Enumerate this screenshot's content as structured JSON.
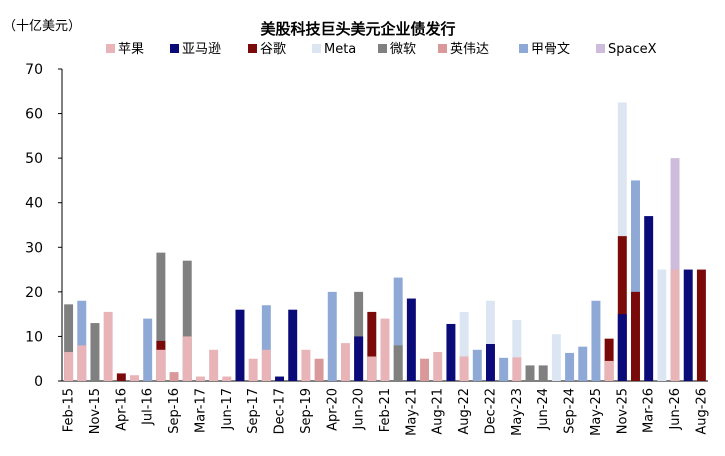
{
  "chart_data": {
    "type": "bar",
    "stacked": true,
    "title": "美股科技巨头美元企业债发行",
    "unit_label": "（十亿美元）",
    "ylim": [
      0,
      70
    ],
    "yticks": [
      0,
      10,
      20,
      30,
      40,
      50,
      60,
      70
    ],
    "grid": false,
    "legend_position": "top",
    "colors": {
      "苹果": "#E8B4B8",
      "亚马逊": "#0A0A78",
      "谷歌": "#7A0A0A",
      "Meta": "#DCE6F2",
      "微软": "#808080",
      "英伟达": "#D9999B",
      "甲骨文": "#8EA9D6",
      "SpaceX": "#CDBCDC"
    },
    "legend": [
      "苹果",
      "亚马逊",
      "谷歌",
      "Meta",
      "微软",
      "英伟达",
      "甲骨文",
      "SpaceX"
    ],
    "x_tick_labels": [
      "Feb-15",
      "Nov-15",
      "Apr-16",
      "Jul-16",
      "Sep-16",
      "Mar-17",
      "Jun-17",
      "Sep-17",
      "Dec-17",
      "Sep-19",
      "Apr-20",
      "Jun-20",
      "Feb-21",
      "May-21",
      "Aug-21",
      "Aug-22",
      "Dec-22",
      "May-23",
      "Jun-24",
      "Sep-24",
      "May-25",
      "Nov-25",
      "Mar-26",
      "Jun-26",
      "Aug-26"
    ],
    "categories": [
      "Feb-15",
      "",
      "Nov-15",
      "",
      "Apr-16",
      "",
      "Jul-16",
      "",
      "Sep-16",
      "",
      "Mar-17",
      "",
      "Jun-17",
      "",
      "Sep-17",
      "",
      "Dec-17",
      "",
      "Sep-19",
      "",
      "Apr-20",
      "",
      "Jun-20",
      "",
      "Feb-21",
      "",
      "May-21",
      "",
      "Aug-21",
      "",
      "Aug-22",
      "",
      "Dec-22",
      "",
      "May-23",
      "",
      "Jun-24",
      "",
      "Sep-24",
      "",
      "May-25",
      "",
      "Nov-25",
      "",
      "Mar-26",
      "",
      "Jun-26",
      "",
      "Aug-26"
    ],
    "bars": [
      [
        [
          "微软",
          17.2
        ],
        [
          "苹果",
          6.5
        ]
      ],
      [
        [
          "甲骨文",
          18
        ],
        [
          "苹果",
          8
        ]
      ],
      [
        [
          "微软",
          13
        ]
      ],
      [
        [
          "苹果",
          15.5
        ]
      ],
      [
        [
          "谷歌",
          1.7
        ]
      ],
      [
        [
          "苹果",
          1.3
        ]
      ],
      [
        [
          "甲骨文",
          14
        ]
      ],
      [
        [
          "微软",
          28.8
        ],
        [
          "谷歌",
          9
        ],
        [
          "苹果",
          7
        ]
      ],
      [
        [
          "英伟达",
          2
        ]
      ],
      [
        [
          "微软",
          27
        ],
        [
          "苹果",
          10
        ]
      ],
      [
        [
          "苹果",
          1
        ]
      ],
      [
        [
          "苹果",
          7
        ]
      ],
      [
        [
          "苹果",
          1
        ]
      ],
      [
        [
          "亚马逊",
          16
        ]
      ],
      [
        [
          "苹果",
          5
        ]
      ],
      [
        [
          "甲骨文",
          17
        ],
        [
          "苹果",
          7
        ]
      ],
      [
        [
          "亚马逊",
          1
        ]
      ],
      [
        [
          "亚马逊",
          16
        ]
      ],
      [
        [
          "苹果",
          7
        ]
      ],
      [
        [
          "英伟达",
          5
        ]
      ],
      [
        [
          "甲骨文",
          20
        ]
      ],
      [
        [
          "苹果",
          8.5
        ]
      ],
      [
        [
          "微软",
          20
        ],
        [
          "亚马逊",
          10
        ]
      ],
      [
        [
          "谷歌",
          15.5
        ],
        [
          "苹果",
          5.5
        ]
      ],
      [
        [
          "苹果",
          14
        ]
      ],
      [
        [
          "甲骨文",
          23.2
        ],
        [
          "微软",
          8
        ]
      ],
      [
        [
          "亚马逊",
          18.5
        ]
      ],
      [
        [
          "英伟达",
          5
        ]
      ],
      [
        [
          "苹果",
          6.5
        ]
      ],
      [
        [
          "亚马逊",
          12.8
        ]
      ],
      [
        [
          "Meta",
          15.5
        ],
        [
          "苹果",
          5.5
        ]
      ],
      [
        [
          "甲骨文",
          7
        ]
      ],
      [
        [
          "Meta",
          18
        ],
        [
          "亚马逊",
          8.3
        ]
      ],
      [
        [
          "甲骨文",
          5.2
        ]
      ],
      [
        [
          "Meta",
          13.7
        ],
        [
          "苹果",
          5.3
        ]
      ],
      [
        [
          "微软",
          3.5
        ]
      ],
      [
        [
          "微软",
          3.5
        ]
      ],
      [
        [
          "Meta",
          10.5
        ]
      ],
      [
        [
          "甲骨文",
          6.3
        ]
      ],
      [
        [
          "甲骨文",
          7.7
        ]
      ],
      [
        [
          "甲骨文",
          18
        ]
      ],
      [
        [
          "谷歌",
          9.5
        ],
        [
          "苹果",
          4.5
        ]
      ],
      [
        [
          "Meta",
          62.5
        ],
        [
          "谷歌",
          32.5
        ],
        [
          "亚马逊",
          15
        ]
      ],
      [
        [
          "甲骨文",
          45
        ],
        [
          "谷歌",
          20
        ]
      ],
      [
        [
          "亚马逊",
          37
        ]
      ],
      [
        [
          "Meta",
          25
        ]
      ],
      [
        [
          "SpaceX",
          50
        ],
        [
          "苹果",
          25
        ]
      ],
      [
        [
          "亚马逊",
          25
        ]
      ],
      [
        [
          "谷歌",
          25
        ]
      ]
    ]
  }
}
